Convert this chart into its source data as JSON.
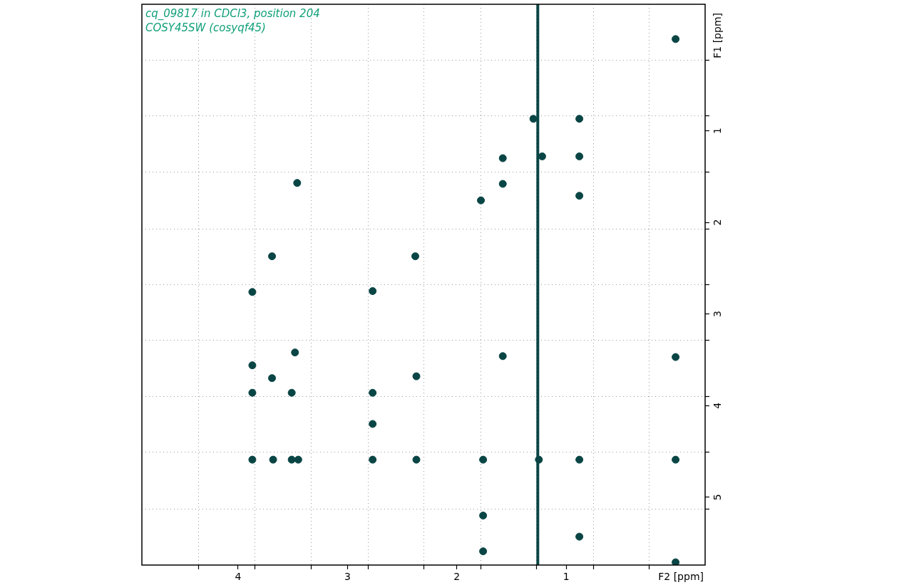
{
  "chart_data": {
    "type": "scatter",
    "title": "cq_09817 in CDCl3, position 204",
    "subtitle": "COSY45SW (cosyqf45)",
    "xlabel": "F2 [ppm]",
    "ylabel": "F1 [ppm]",
    "xlim": [
      4.88,
      -0.27
    ],
    "ylim": [
      5.74,
      -0.38
    ],
    "xticks": [
      {
        "value": 4.36,
        "label": null
      },
      4,
      {
        "value": 3.85,
        "label": null
      },
      {
        "value": 3.33,
        "label": null
      },
      3,
      {
        "value": 2.81,
        "label": null
      },
      {
        "value": 2.3,
        "label": null
      },
      2,
      {
        "value": 1.78,
        "label": null
      },
      {
        "value": 1.27,
        "label": null
      },
      1,
      {
        "value": 0.75,
        "label": null
      },
      {
        "value": 0.24,
        "label": null
      }
    ],
    "yticks": [
      {
        "value": 0.23,
        "label": null
      },
      {
        "value": 0.84,
        "label": null
      },
      1,
      {
        "value": 1.45,
        "label": null
      },
      2,
      {
        "value": 2.07,
        "label": null
      },
      {
        "value": 2.68,
        "label": null
      },
      3,
      {
        "value": 3.29,
        "label": null
      },
      {
        "value": 3.9,
        "label": null
      },
      4,
      {
        "value": 4.51,
        "label": null
      },
      5,
      {
        "value": 5.13,
        "label": null
      }
    ],
    "grid": true,
    "marker": "circle",
    "series": [
      {
        "color": "#0a4545",
        "x": [
          0.0,
          1.3,
          0.88,
          1.58,
          1.22,
          0.88,
          1.58,
          3.46,
          1.78,
          0.88,
          3.69,
          2.38,
          3.87,
          2.77,
          3.87,
          3.48,
          3.69,
          3.87,
          3.51,
          2.77,
          2.37,
          1.58,
          0.0,
          2.77,
          3.87,
          3.68,
          3.51,
          3.45,
          2.77,
          2.37,
          1.76,
          1.25,
          0.88,
          0.0,
          1.76,
          0.88,
          1.76,
          0.0
        ],
        "values": [
          0.0,
          0.87,
          0.87,
          1.3,
          1.28,
          1.28,
          1.58,
          1.57,
          1.76,
          1.71,
          2.37,
          2.37,
          2.76,
          2.75,
          3.56,
          3.42,
          3.7,
          3.86,
          3.86,
          3.86,
          3.68,
          3.46,
          3.47,
          4.2,
          4.59,
          4.59,
          4.59,
          4.59,
          4.59,
          4.59,
          4.59,
          4.59,
          4.59,
          4.59,
          5.2,
          5.43,
          5.59,
          5.71
        ]
      },
      {
        "type": "line",
        "color": "#0a4545",
        "marker": "none",
        "x": [
          1.26,
          1.26
        ],
        "values": [
          -0.38,
          5.74
        ]
      }
    ]
  }
}
